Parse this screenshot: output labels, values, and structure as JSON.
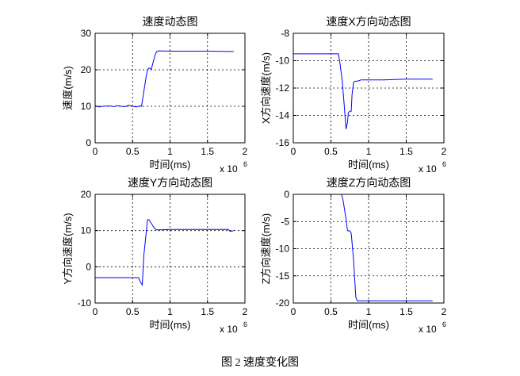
{
  "caption": "图 2  速度变化图",
  "chart_data": [
    {
      "type": "line",
      "title": "速度动态图",
      "xlabel": "时间(ms)",
      "ylabel": "速度(m/s)",
      "x_exponent_label": "x 10",
      "x_exponent_power": "6",
      "xlim": [
        0,
        2
      ],
      "ylim": [
        0,
        30
      ],
      "xticks": [
        0,
        0.5,
        1,
        1.5,
        2
      ],
      "yticks": [
        0,
        10,
        20,
        30
      ],
      "xtick_labels": [
        "0",
        "0.5",
        "1",
        "1.5",
        "2"
      ],
      "ytick_labels": [
        "0",
        "10",
        "20",
        "30"
      ],
      "grid": true,
      "line_color": "#0000ff",
      "x": [
        0,
        0.05,
        0.1,
        0.2,
        0.25,
        0.3,
        0.35,
        0.4,
        0.45,
        0.5,
        0.55,
        0.6,
        0.62,
        0.65,
        0.68,
        0.7,
        0.72,
        0.75,
        0.78,
        0.8,
        0.82,
        0.85,
        1.0,
        1.5,
        1.85
      ],
      "y": [
        10.1,
        9.8,
        10.0,
        10.1,
        9.9,
        10.2,
        10.0,
        9.9,
        10.3,
        10.0,
        9.8,
        10.1,
        10.0,
        14.0,
        18.0,
        20.0,
        20.5,
        20.2,
        22.5,
        24.0,
        25.0,
        25.2,
        25.1,
        25.1,
        25.0
      ]
    },
    {
      "type": "line",
      "title": "速度X方向动态图",
      "xlabel": "时间(ms)",
      "ylabel": "X方向速度(m/s)",
      "x_exponent_label": "x 10",
      "x_exponent_power": "6",
      "xlim": [
        0,
        2
      ],
      "ylim": [
        -16,
        -8
      ],
      "xticks": [
        0,
        0.5,
        1,
        1.5,
        2
      ],
      "yticks": [
        -16,
        -14,
        -12,
        -10,
        -8
      ],
      "xtick_labels": [
        "0",
        "0.5",
        "1",
        "1.5",
        "2"
      ],
      "ytick_labels": [
        "-16",
        "-14",
        "-12",
        "-10",
        "-8"
      ],
      "grid": true,
      "line_color": "#0000ff",
      "x": [
        0,
        0.6,
        0.62,
        0.65,
        0.68,
        0.7,
        0.72,
        0.73,
        0.75,
        0.77,
        0.78,
        0.8,
        0.82,
        0.85,
        0.9,
        1.0,
        1.2,
        1.5,
        1.85
      ],
      "y": [
        -9.5,
        -9.5,
        -10.2,
        -11.5,
        -13.5,
        -15.0,
        -14.5,
        -13.8,
        -13.7,
        -13.7,
        -12.5,
        -11.6,
        -11.5,
        -11.5,
        -11.4,
        -11.4,
        -11.4,
        -11.35,
        -11.35
      ]
    },
    {
      "type": "line",
      "title": "速度Y方向动态图",
      "xlabel": "时间(ms)",
      "ylabel": "Y方向速度(m/s)",
      "x_exponent_label": "x 10",
      "x_exponent_power": "6",
      "xlim": [
        0,
        2
      ],
      "ylim": [
        -10,
        20
      ],
      "xticks": [
        0,
        0.5,
        1,
        1.5,
        2
      ],
      "yticks": [
        -10,
        0,
        10,
        20
      ],
      "xtick_labels": [
        "0",
        "0.5",
        "1",
        "1.5",
        "2"
      ],
      "ytick_labels": [
        "-10",
        "0",
        "10",
        "20"
      ],
      "grid": true,
      "line_color": "#0000ff",
      "x": [
        0,
        0.58,
        0.6,
        0.63,
        0.65,
        0.7,
        0.72,
        0.75,
        0.78,
        0.8,
        0.82,
        0.85,
        1.0,
        1.5,
        1.78,
        1.8,
        1.85
      ],
      "y": [
        -3.0,
        -3.0,
        -4.0,
        -5.0,
        3.0,
        13.0,
        13.0,
        12.0,
        11.0,
        10.5,
        10.2,
        10.2,
        10.3,
        10.3,
        10.3,
        9.8,
        10.0
      ]
    },
    {
      "type": "line",
      "title": "速度Z方向动态图",
      "xlabel": "时间(ms)",
      "ylabel": "Z方向速度(m/s)",
      "x_exponent_label": "x 10",
      "x_exponent_power": "6",
      "xlim": [
        0,
        2
      ],
      "ylim": [
        -20,
        0
      ],
      "xticks": [
        0,
        0.5,
        1,
        1.5,
        2
      ],
      "yticks": [
        -20,
        -15,
        -10,
        -5,
        0
      ],
      "xtick_labels": [
        "0",
        "0.5",
        "1",
        "1.5",
        "2"
      ],
      "ytick_labels": [
        "-20",
        "-15",
        "-10",
        "-5",
        "0"
      ],
      "grid": true,
      "line_color": "#0000ff",
      "x": [
        0,
        0.64,
        0.66,
        0.7,
        0.72,
        0.75,
        0.77,
        0.8,
        0.83,
        0.85,
        0.9,
        1.0,
        1.5,
        1.85
      ],
      "y": [
        0,
        0,
        -1.0,
        -4.5,
        -6.7,
        -6.7,
        -7.2,
        -12.0,
        -19.0,
        -19.6,
        -19.6,
        -19.6,
        -19.6,
        -19.6
      ]
    }
  ]
}
